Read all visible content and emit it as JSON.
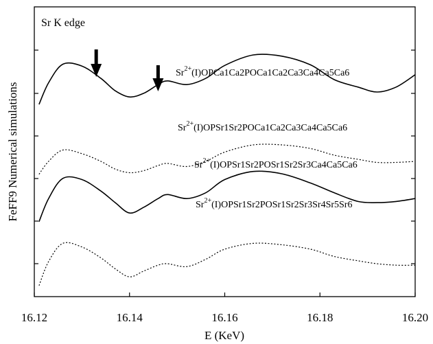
{
  "chart_data": {
    "type": "line",
    "title": "Sr K edge",
    "xlabel": "E (KeV)",
    "ylabel": "FeFF9 Numerical simulations",
    "xlim": [
      16.12,
      16.2
    ],
    "xticks": [
      "16.12",
      "16.14",
      "16.16",
      "16.18",
      "16.20"
    ],
    "grid": false,
    "ytick_labels": false,
    "arrows_at_x": [
      16.133,
      16.146
    ],
    "x": [
      16.121,
      16.123,
      16.126,
      16.13,
      16.134,
      16.137,
      16.14,
      16.143,
      16.146,
      16.148,
      16.152,
      16.156,
      16.16,
      16.166,
      16.172,
      16.178,
      16.183,
      16.188,
      16.192,
      16.196,
      16.2
    ],
    "series": [
      {
        "name": "Sr2+(I)OPCa1Ca2POCa1Ca2Ca3Ca4Ca5Ca6",
        "name_parts": {
          "ion": "Sr",
          "charge": "2+",
          "rest": "(I)OPCa1Ca2POCa1Ca2Ca3Ca4Ca5Ca6"
        },
        "style": "solid",
        "values": [
          0.2,
          0.55,
          0.85,
          0.82,
          0.62,
          0.42,
          0.32,
          0.38,
          0.52,
          0.58,
          0.52,
          0.62,
          0.83,
          1.0,
          0.98,
          0.84,
          0.6,
          0.48,
          0.4,
          0.48,
          0.68
        ]
      },
      {
        "name": "Sr2+(I)OPSr1Sr2POCa1Ca2Ca3Ca4Ca5Ca6",
        "name_parts": {
          "ion": "Sr",
          "charge": "2+",
          "rest": "(I)OPSr1Sr2POCa1Ca2Ca3Ca4Ca5Ca6"
        },
        "style": "dotted",
        "values": [
          0.15,
          0.4,
          0.62,
          0.55,
          0.4,
          0.25,
          0.18,
          0.22,
          0.32,
          0.36,
          0.3,
          0.4,
          0.58,
          0.72,
          0.72,
          0.65,
          0.52,
          0.44,
          0.38,
          0.38,
          0.4
        ]
      },
      {
        "name": "Sr2+(I)OPSr1Sr2POSr1Sr2Sr3Ca4Ca5Ca6",
        "name_parts": {
          "ion": "Sr",
          "charge": "2+",
          "rest": "(I)OPSr1Sr2POSr1Sr2Sr3Ca4Ca5Ca6"
        },
        "style": "solid",
        "values": [
          0.05,
          0.45,
          0.8,
          0.78,
          0.58,
          0.38,
          0.2,
          0.3,
          0.45,
          0.52,
          0.45,
          0.55,
          0.78,
          0.92,
          0.88,
          0.72,
          0.55,
          0.4,
          0.38,
          0.4,
          0.45
        ]
      },
      {
        "name": "Sr2+(I)OPSr1Sr2POSr1Sr2Sr3Sr4Sr5Sr6",
        "name_parts": {
          "ion": "Sr",
          "charge": "2+",
          "rest": "(I)OPSr1Sr2POSr1Sr2Sr3Sr4Sr5Sr6"
        },
        "style": "dotted",
        "values": [
          0.02,
          0.35,
          0.6,
          0.55,
          0.4,
          0.25,
          0.14,
          0.22,
          0.3,
          0.32,
          0.28,
          0.38,
          0.52,
          0.6,
          0.58,
          0.52,
          0.42,
          0.36,
          0.32,
          0.3,
          0.3
        ]
      }
    ]
  }
}
